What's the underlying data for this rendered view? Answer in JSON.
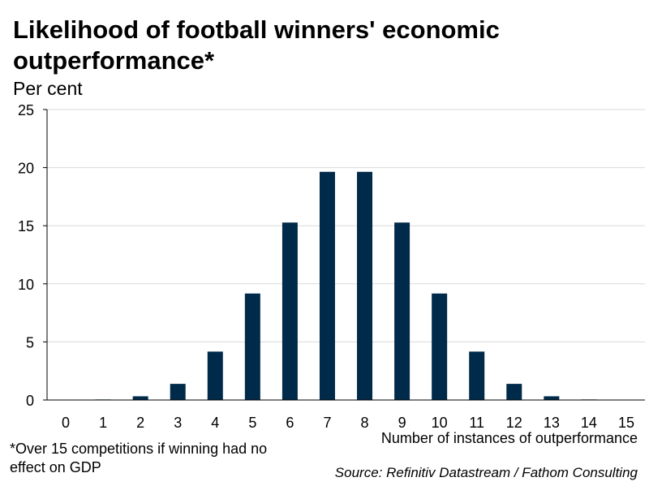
{
  "chart_data": {
    "type": "bar",
    "title": "Likelihood of football winners' economic outperformance*",
    "ylabel": "Per cent",
    "xlabel": "Number of instances of outperformance",
    "categories": [
      "0",
      "1",
      "2",
      "3",
      "4",
      "5",
      "6",
      "7",
      "8",
      "9",
      "10",
      "11",
      "12",
      "13",
      "14",
      "15"
    ],
    "values": [
      0.003,
      0.046,
      0.32,
      1.389,
      4.166,
      9.164,
      15.274,
      19.638,
      19.638,
      15.274,
      9.164,
      4.166,
      1.389,
      0.32,
      0.046,
      0.003
    ],
    "ylim": [
      0,
      25
    ],
    "yticks": [
      0,
      5,
      10,
      15,
      20,
      25
    ],
    "grid": true,
    "bar_color": "#002a4a",
    "footnote": "*Over 15 competitions if winning had no effect on GDP",
    "source": "Source: Refinitiv Datastream / Fathom Consulting"
  }
}
